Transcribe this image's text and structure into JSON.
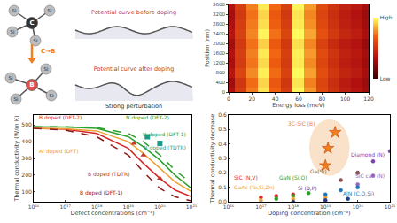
{
  "diagram": {
    "ligand": "Si",
    "center_before": "C",
    "center_after": "B",
    "substitution": "C→B",
    "curve_before": "Potential curve before doping",
    "curve_after": "Potential curve after doping",
    "perturbation": "Strong perturbation"
  },
  "chart_data": [
    {
      "type": "heatmap",
      "xlabel": "Energy loss (meV)",
      "ylabel": "Position (nm)",
      "x": [
        0,
        10,
        20,
        30,
        40,
        50,
        60,
        70,
        80,
        90,
        100,
        110,
        120
      ],
      "y": [
        0,
        400,
        800,
        1200,
        1600,
        2000,
        2400,
        2800,
        3200,
        3600
      ],
      "z": [
        [
          0.35,
          0.55,
          0.75,
          0.95,
          0.7,
          0.55,
          0.98,
          0.8,
          0.6,
          0.5,
          0.42,
          0.38,
          0.3
        ],
        [
          0.3,
          0.52,
          0.72,
          0.92,
          0.66,
          0.52,
          0.95,
          0.76,
          0.58,
          0.48,
          0.4,
          0.35,
          0.28
        ],
        [
          0.38,
          0.58,
          0.78,
          0.97,
          0.72,
          0.57,
          0.99,
          0.82,
          0.62,
          0.52,
          0.44,
          0.4,
          0.32
        ],
        [
          0.33,
          0.54,
          0.74,
          0.93,
          0.68,
          0.54,
          0.96,
          0.78,
          0.59,
          0.49,
          0.41,
          0.37,
          0.29
        ],
        [
          0.36,
          0.56,
          0.76,
          0.96,
          0.71,
          0.56,
          0.97,
          0.81,
          0.61,
          0.51,
          0.43,
          0.39,
          0.31
        ],
        [
          0.31,
          0.53,
          0.73,
          0.91,
          0.67,
          0.53,
          0.94,
          0.77,
          0.57,
          0.47,
          0.4,
          0.36,
          0.27
        ],
        [
          0.37,
          0.57,
          0.77,
          0.98,
          0.73,
          0.58,
          0.99,
          0.83,
          0.63,
          0.53,
          0.45,
          0.41,
          0.33
        ],
        [
          0.34,
          0.55,
          0.75,
          0.94,
          0.69,
          0.55,
          0.96,
          0.79,
          0.6,
          0.5,
          0.42,
          0.38,
          0.3
        ],
        [
          0.32,
          0.53,
          0.73,
          0.92,
          0.67,
          0.53,
          0.95,
          0.77,
          0.58,
          0.48,
          0.41,
          0.36,
          0.28
        ],
        [
          0.36,
          0.56,
          0.76,
          0.96,
          0.71,
          0.56,
          0.98,
          0.81,
          0.61,
          0.51,
          0.43,
          0.39,
          0.31
        ]
      ],
      "xlim": [
        0,
        120
      ],
      "ylim": [
        0,
        3600
      ],
      "xticks": [
        0,
        20,
        40,
        60,
        80,
        100,
        120
      ],
      "yticks": [
        0,
        400,
        800,
        1200,
        1600,
        2000,
        2400,
        2800,
        3200,
        3600
      ],
      "colorbar": {
        "range": [
          0,
          1
        ],
        "ticks": [
          {
            "value": 1,
            "label": "High"
          },
          {
            "value": 0,
            "label": "Low"
          }
        ]
      }
    },
    {
      "type": "line",
      "xlabel": "Defect concentrations (cm⁻³)",
      "ylabel": "Thermal conductivity (W/m K)",
      "log": "x",
      "xlim": [
        1e+16,
        1e+21
      ],
      "ylim": [
        40,
        560
      ],
      "xticks": [
        {
          "value": 1e+16,
          "label": "10¹⁶"
        },
        {
          "value": 1e+17,
          "label": "10¹⁷"
        },
        {
          "value": 1e+18,
          "label": "10¹⁸"
        },
        {
          "value": 1e+19,
          "label": "10¹⁹"
        },
        {
          "value": 1e+20,
          "label": "10²⁰"
        },
        {
          "value": 1e+21,
          "label": "10²¹"
        }
      ],
      "yticks": [
        100,
        200,
        300,
        400,
        500
      ],
      "series": [
        {
          "name": "N doped (DFT-2)",
          "type": "line",
          "line_style": "solid",
          "color": "#2ca02c",
          "x": [
            1e+16,
            1e+17,
            1e+18,
            1e+19,
            3e+19,
            1e+20,
            3e+20,
            1e+21
          ],
          "values": [
            490,
            488,
            480,
            430,
            370,
            290,
            200,
            120
          ]
        },
        {
          "name": "N doped (DFT-1)",
          "type": "line",
          "line_style": "dash",
          "color": "#2ca02c",
          "x": [
            1e+16,
            1e+17,
            1e+18,
            1e+19,
            3e+19,
            1e+20,
            3e+20,
            1e+21
          ],
          "values": [
            490,
            490,
            485,
            450,
            400,
            320,
            230,
            150
          ]
        },
        {
          "name": "N doped (TDTR)",
          "type": "scatter",
          "marker": "square",
          "color": "#1a9a8a",
          "x": [
            4e+19,
            1e+20
          ],
          "values": [
            430,
            390
          ]
        },
        {
          "name": "B doped (DFT-2)",
          "type": "line",
          "line_style": "solid",
          "color": "#d62728",
          "x": [
            1e+16,
            1e+17,
            1e+18,
            1e+19,
            3e+19,
            1e+20,
            3e+20,
            1e+21
          ],
          "values": [
            480,
            475,
            450,
            360,
            270,
            180,
            110,
            70
          ]
        },
        {
          "name": "Al doped (DFT)",
          "type": "line",
          "line_style": "solid",
          "color": "#f0a030",
          "x": [
            1e+16,
            1e+17,
            1e+18,
            1e+19,
            3e+19,
            1e+20,
            3e+20,
            1e+21
          ],
          "values": [
            480,
            478,
            465,
            400,
            330,
            240,
            160,
            100
          ]
        },
        {
          "name": "B doped (TDTR)",
          "type": "scatter",
          "marker": "triangle",
          "color": "#c0392b",
          "x": [
            1.5e+19,
            3e+19,
            1e+20
          ],
          "values": [
            390,
            320,
            180
          ]
        },
        {
          "name": "B doped (DFT-1)",
          "type": "line",
          "line_style": "dash",
          "color": "#8b1a1a",
          "x": [
            1e+16,
            1e+17,
            1e+18,
            1e+19,
            3e+19,
            1e+20,
            3e+20,
            1e+21
          ],
          "values": [
            480,
            470,
            430,
            320,
            220,
            120,
            70,
            45
          ]
        }
      ]
    },
    {
      "type": "scatter",
      "xlabel": "Doping concentration (cm⁻³)",
      "ylabel": "Thermal conductivity decrease",
      "log": "x",
      "xlim": [
        1e+16,
        1e+21
      ],
      "ylim": [
        0,
        0.6
      ],
      "xticks": [
        {
          "value": 1e+16,
          "label": "10¹⁶"
        },
        {
          "value": 1e+17,
          "label": "10¹⁷"
        },
        {
          "value": 1e+18,
          "label": "10¹⁸"
        },
        {
          "value": 1e+19,
          "label": "10¹⁹"
        },
        {
          "value": 1e+20,
          "label": "10²⁰"
        },
        {
          "value": 1e+21,
          "label": "10²¹"
        }
      ],
      "yticks": [
        {
          "value": 0,
          "label": "0.0"
        },
        0.1,
        0.2,
        0.3,
        0.4,
        0.5,
        0.6
      ],
      "series": [
        {
          "name": "3C-SiC (B)",
          "marker": "star",
          "color": "#f08020",
          "x": [
            1e+19,
            2e+19,
            1.2e+19
          ],
          "values": [
            0.25,
            0.48,
            0.37
          ]
        },
        {
          "name": "Diamond (N)",
          "marker": "circle",
          "color": "#7b3fb0",
          "x": [
            1e+20,
            3e+20,
            1e+21
          ],
          "values": [
            0.2,
            0.28,
            0.35
          ]
        },
        {
          "name": "SiC cal. (N)",
          "marker": "circle",
          "color": "#9467bd",
          "x": [
            1e+20,
            3e+20
          ],
          "values": [
            0.12,
            0.18
          ]
        },
        {
          "name": "Ge(Si)",
          "marker": "circle",
          "color": "#8c564b",
          "x": [
            3e+19,
            1e+20
          ],
          "values": [
            0.15,
            0.2
          ]
        },
        {
          "name": "SiC (N,V)",
          "marker": "circle",
          "color": "#d62728",
          "x": [
            1e+17,
            3e+17,
            1e+18
          ],
          "values": [
            0.03,
            0.04,
            0.05
          ]
        },
        {
          "name": "GaN (Si,O)",
          "marker": "circle",
          "color": "#2ca02c",
          "x": [
            3e+17,
            1e+18,
            3e+18
          ],
          "values": [
            0.02,
            0.04,
            0.06
          ]
        },
        {
          "name": "GaAs (Te,Si,Zn)",
          "marker": "circle",
          "color": "#f0a030",
          "x": [
            1e+17,
            1e+18,
            1e+19
          ],
          "values": [
            0.01,
            0.02,
            0.03
          ]
        },
        {
          "name": "Si (B,P)",
          "marker": "circle",
          "color": "#1f3f8f",
          "x": [
            1e+18,
            1e+19,
            5e+19
          ],
          "values": [
            0.0,
            0.01,
            0.02
          ]
        },
        {
          "name": "AlN (C,O,Si)",
          "marker": "circle",
          "color": "#1f77b4",
          "x": [
            1e+19,
            3e+19,
            1e+20
          ],
          "values": [
            0.05,
            0.08,
            0.1
          ]
        }
      ]
    }
  ]
}
